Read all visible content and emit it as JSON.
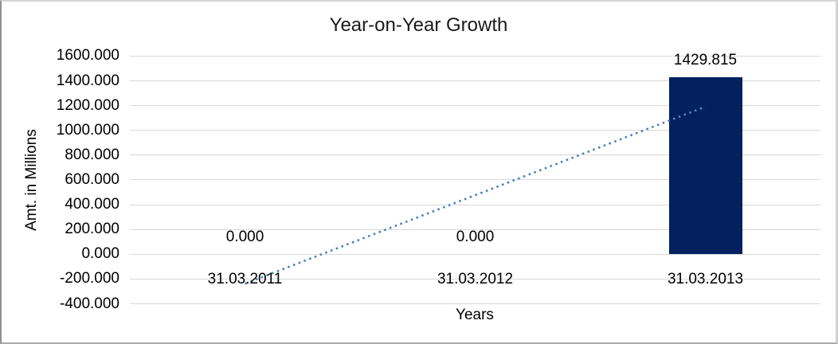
{
  "chart_data": {
    "type": "bar",
    "title": "Year-on-Year Growth",
    "xlabel": "Years",
    "ylabel": "Amt. in Millions",
    "categories": [
      "31.03.2011",
      "31.03.2012",
      "31.03.2013"
    ],
    "series": [
      {
        "values": [
          0,
          0,
          1429.815
        ],
        "color": "#02215E"
      }
    ],
    "data_labels": [
      "0.000",
      "0.000",
      "1429.815"
    ],
    "y_axis": {
      "min": -400,
      "max": 1600,
      "step": 200,
      "tick_labels": [
        "1600.000",
        "1400.000",
        "1200.000",
        "1000.000",
        "800.000",
        "600.000",
        "400.000",
        "200.000",
        "0.000",
        "-200.000",
        "-400.000"
      ]
    },
    "trendline": {
      "type": "linear",
      "style": "dotted",
      "color": "#4E81BD"
    },
    "grid": {
      "show": true,
      "color": "#D9D9D9"
    },
    "legend": "none",
    "background": "#FFFFFF"
  }
}
